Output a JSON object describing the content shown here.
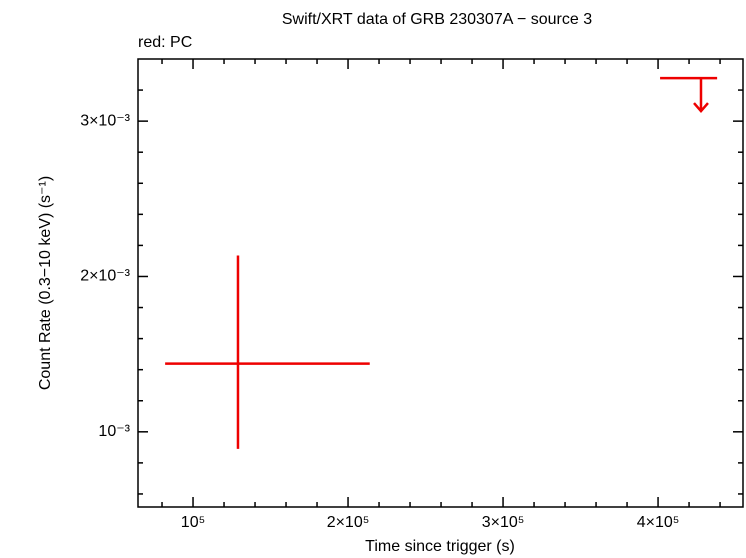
{
  "chart_data": {
    "type": "errorbar",
    "title": "Swift/XRT data of GRB 230307A − source 3",
    "subtitle": "red: PC",
    "xlabel": "Time since trigger (s)",
    "ylabel": "Count Rate (0.3−10 keV) (s⁻¹)",
    "color": "#ee0000",
    "xlim": [
      64500,
      454800
    ],
    "ylim": [
      0.000516,
      0.0034
    ],
    "xticks": [
      {
        "value": 100000,
        "label": "10⁵"
      },
      {
        "value": 200000,
        "label": "2×10⁵"
      },
      {
        "value": 300000,
        "label": "3×10⁵"
      },
      {
        "value": 400000,
        "label": "4×10⁵"
      }
    ],
    "yticks": [
      {
        "value": 0.001,
        "label": "10⁻³"
      },
      {
        "value": 0.002,
        "label": "2×10⁻³"
      },
      {
        "value": 0.003,
        "label": "3×10⁻³"
      }
    ],
    "xminorticks": [
      80000,
      120000,
      140000,
      160000,
      180000,
      220000,
      240000,
      260000,
      280000,
      320000,
      340000,
      360000,
      380000,
      420000,
      440000
    ],
    "yminorticks": [
      0.0006,
      0.0008,
      0.0012,
      0.0014,
      0.0016,
      0.0018,
      0.0022,
      0.0024,
      0.0026,
      0.0028,
      0.0032
    ],
    "points": {
      "x": [
        129000
      ],
      "xerr_minus": [
        47000
      ],
      "xerr_plus": [
        85000
      ],
      "values": [
        0.001439
      ],
      "yerr_minus": [
        0.000549
      ],
      "yerr_plus": [
        0.000696
      ]
    },
    "upper_limits": {
      "x": [
        427700
      ],
      "xerr_minus": [
        26400
      ],
      "xerr_plus": [
        10400
      ],
      "values": [
        0.003277
      ]
    }
  }
}
